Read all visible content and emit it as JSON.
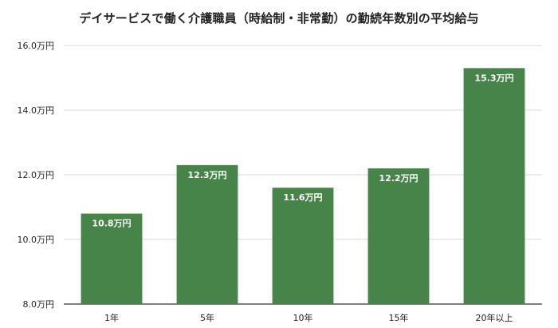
{
  "chart_data": {
    "type": "bar",
    "title": "デイサービスで働く介護職員（時給制・非常勤）の勤続年数別の平均給与",
    "categories": [
      "1年",
      "5年",
      "10年",
      "15年",
      "20年以上"
    ],
    "values": [
      10.8,
      12.3,
      11.6,
      12.2,
      15.3
    ],
    "data_labels": [
      "10.8万円",
      "12.3万円",
      "11.6万円",
      "12.2万円",
      "15.3万円"
    ],
    "ylim": [
      8.0,
      16.0
    ],
    "yticks": [
      8.0,
      10.0,
      12.0,
      14.0,
      16.0
    ],
    "ytick_labels": [
      "8.0万円",
      "10.0万円",
      "12.0万円",
      "14.0万円",
      "16.0万円"
    ],
    "xlabel": "",
    "ylabel": "",
    "grid": true,
    "legend": "none",
    "bar_color": "#46844a",
    "grid_color": "#d9d9d9"
  }
}
